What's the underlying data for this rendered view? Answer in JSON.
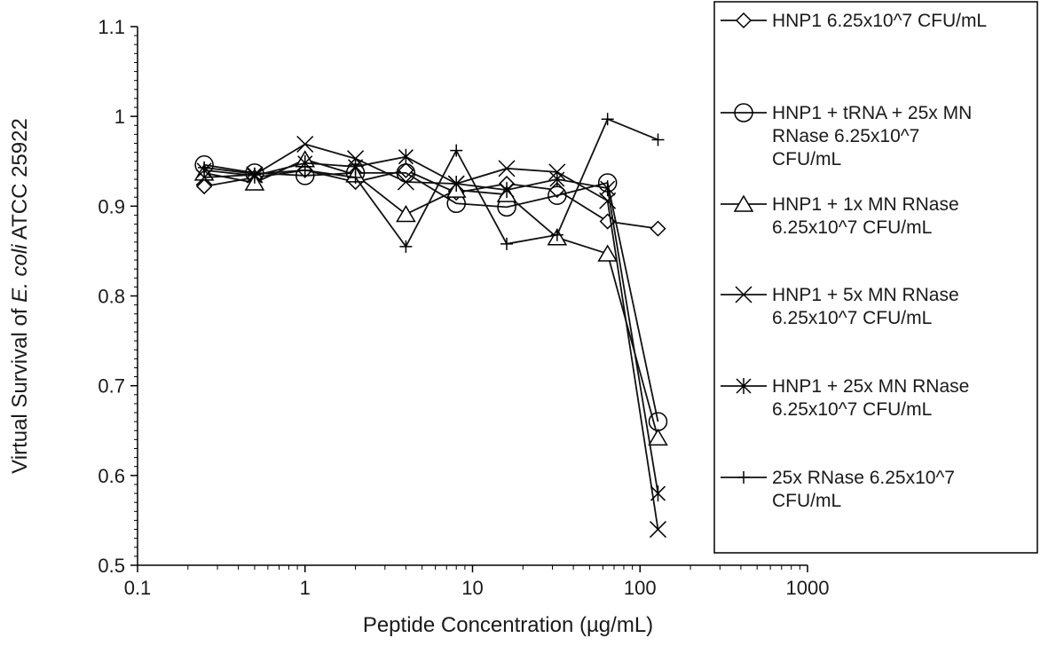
{
  "chart_data": {
    "type": "line",
    "x_scale": "log",
    "xlim": [
      0.1,
      1000
    ],
    "ylim": [
      0.5,
      1.1
    ],
    "x_ticks": [
      "0.1",
      "1",
      "10",
      "100",
      "1000"
    ],
    "y_ticks": [
      "0.5",
      "0.6",
      "0.7",
      "0.8",
      "0.9",
      "1",
      "1.1"
    ],
    "xlabel": "Peptide Concentration (µg/mL)",
    "ylabel_parts": [
      "Virtual Survival of ",
      "E. coli",
      " ATCC 25922"
    ],
    "legend_position": "right",
    "grid": false,
    "x": [
      0.25,
      0.5,
      1,
      2,
      4,
      8,
      16,
      32,
      64,
      128
    ],
    "series": [
      {
        "name": "HNP1 6.25x10^7 CFU/mL",
        "marker": "diamond",
        "legend_lines": [
          "HNP1 6.25x10^7 CFU/mL"
        ],
        "values": [
          0.922,
          0.932,
          0.94,
          0.927,
          0.94,
          0.915,
          0.925,
          0.918,
          0.883,
          0.875
        ]
      },
      {
        "name": "HNP1 + tRNA + 25x MN RNase 6.25x10^7 CFU/mL",
        "marker": "circle",
        "legend_lines": [
          "HNP1 + tRNA + 25x MN",
          "RNase 6.25x10^7",
          "CFU/mL"
        ],
        "values": [
          0.946,
          0.937,
          0.934,
          0.937,
          0.937,
          0.903,
          0.899,
          0.912,
          0.926,
          0.66
        ]
      },
      {
        "name": "HNP1 + 1x MN RNase 6.25x10^7 CFU/mL",
        "marker": "triangle",
        "legend_lines": [
          "HNP1 + 1x MN RNase",
          "6.25x10^7 CFU/mL"
        ],
        "values": [
          0.937,
          0.926,
          0.952,
          0.935,
          0.891,
          0.918,
          0.913,
          0.865,
          0.847,
          0.642
        ]
      },
      {
        "name": "HNP1 + 5x MN RNase 6.25x10^7 CFU/mL",
        "marker": "x",
        "legend_lines": [
          "HNP1 + 5x MN RNase",
          "6.25x10^7 CFU/mL"
        ],
        "values": [
          0.932,
          0.935,
          0.969,
          0.953,
          0.927,
          0.925,
          0.942,
          0.938,
          0.906,
          0.54
        ]
      },
      {
        "name": "HNP1 + 25x MN RNase 6.25x10^7 CFU/mL",
        "marker": "asterisk",
        "legend_lines": [
          "HNP1 + 25x MN RNase",
          "6.25x10^7 CFU/mL"
        ],
        "values": [
          0.94,
          0.934,
          0.948,
          0.944,
          0.955,
          0.925,
          0.918,
          0.93,
          0.92,
          0.58
        ]
      },
      {
        "name": "25x RNase 6.25x10^7 CFU/mL",
        "marker": "plus",
        "legend_lines": [
          "25x RNase 6.25x10^7",
          "CFU/mL"
        ],
        "values": [
          0.943,
          0.936,
          0.94,
          0.932,
          0.855,
          0.962,
          0.858,
          0.868,
          0.997,
          0.974
        ]
      }
    ]
  }
}
